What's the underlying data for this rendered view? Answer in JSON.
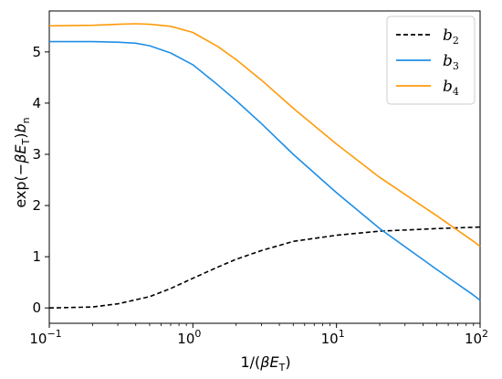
{
  "chart_data": {
    "type": "line",
    "xscale": "log",
    "xlim": [
      0.1,
      100
    ],
    "ylim": [
      -0.3,
      5.8
    ],
    "grid": false,
    "legend_position": "top-right",
    "xlabel": {
      "prefix": "1/(",
      "beta": "β",
      "E": "E",
      "sub": "T",
      "suffix": ")"
    },
    "ylabel": {
      "prefix": "exp(−",
      "beta": "β",
      "E": "E",
      "sub": "T",
      "mid": ")",
      "b": "b",
      "bsub": "n"
    },
    "x_ticks": [
      {
        "base": "10",
        "exp": "−1",
        "value": 0.1
      },
      {
        "base": "10",
        "exp": "0",
        "value": 1
      },
      {
        "base": "10",
        "exp": "1",
        "value": 10
      },
      {
        "base": "10",
        "exp": "2",
        "value": 100
      }
    ],
    "y_ticks": [
      "0",
      "1",
      "2",
      "3",
      "4",
      "5"
    ],
    "series": [
      {
        "name": "b",
        "subscript": "2",
        "color": "#000000",
        "dash": "dashed",
        "x": [
          0.1,
          0.15,
          0.2,
          0.3,
          0.5,
          0.7,
          1,
          1.5,
          2,
          3,
          5,
          10,
          20,
          50,
          100
        ],
        "y": [
          0.0,
          0.01,
          0.02,
          0.08,
          0.22,
          0.38,
          0.58,
          0.8,
          0.95,
          1.12,
          1.3,
          1.42,
          1.5,
          1.55,
          1.58
        ]
      },
      {
        "name": "b",
        "subscript": "3",
        "color": "#1f8fe6",
        "dash": "solid",
        "x": [
          0.1,
          0.2,
          0.3,
          0.4,
          0.5,
          0.7,
          1,
          1.5,
          2,
          3,
          5,
          10,
          20,
          50,
          90,
          100
        ],
        "y": [
          5.2,
          5.2,
          5.19,
          5.17,
          5.12,
          4.98,
          4.75,
          4.35,
          4.05,
          3.6,
          3.0,
          2.25,
          1.55,
          0.75,
          0.25,
          0.15
        ]
      },
      {
        "name": "b",
        "subscript": "4",
        "color": "#ff9a0a",
        "dash": "solid",
        "x": [
          0.1,
          0.2,
          0.3,
          0.4,
          0.5,
          0.7,
          1,
          1.5,
          2,
          3,
          5,
          10,
          20,
          50,
          90,
          100
        ],
        "y": [
          5.51,
          5.52,
          5.54,
          5.55,
          5.54,
          5.5,
          5.38,
          5.1,
          4.85,
          4.45,
          3.9,
          3.2,
          2.55,
          1.8,
          1.3,
          1.2
        ]
      }
    ]
  }
}
